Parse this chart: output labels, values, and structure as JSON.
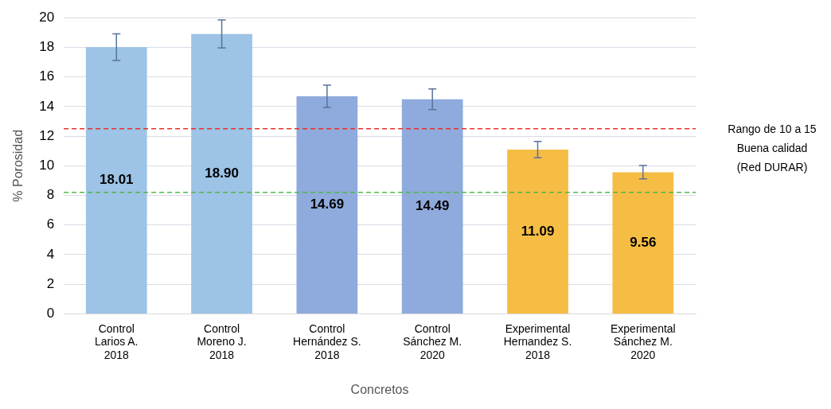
{
  "chart_data": {
    "type": "bar",
    "xlabel": "Concretos",
    "ylabel": "% Porosidad",
    "categories": [
      "Control\nLarios A.\n2018",
      "Control\nMoreno J.\n2018",
      "Control\nHernández S.\n2018",
      "Control\nSánchez M.\n2020",
      "Experimental\nHernandez S.\n2018",
      "Experimental\nSánchez M.\n2020"
    ],
    "values": [
      18.01,
      18.9,
      14.69,
      14.49,
      11.09,
      9.56
    ],
    "value_labels": [
      "18.01",
      "18.90",
      "14.69",
      "14.49",
      "11.09",
      "9.56"
    ],
    "errors": [
      0.9,
      0.95,
      0.75,
      0.7,
      0.55,
      0.45
    ],
    "colors": [
      "#9dc3e6",
      "#9dc3e6",
      "#8faadc",
      "#8faadc",
      "#f6bd45",
      "#f6bd45"
    ],
    "ylim": [
      0,
      20
    ],
    "yticks": [
      0,
      2,
      4,
      6,
      8,
      10,
      12,
      14,
      16,
      18,
      20
    ],
    "grid": "y",
    "legend": false,
    "ref_lines": [
      {
        "axis": "y",
        "value": 12.5,
        "color": "#e8312a",
        "line_style": "dashed"
      },
      {
        "axis": "y",
        "value": 8.2,
        "color": "#4fb848",
        "line_style": "dashed"
      }
    ],
    "annotations": [
      "Rango de 10 a 15\nBuena calidad\n(Red DURAR)"
    ]
  }
}
